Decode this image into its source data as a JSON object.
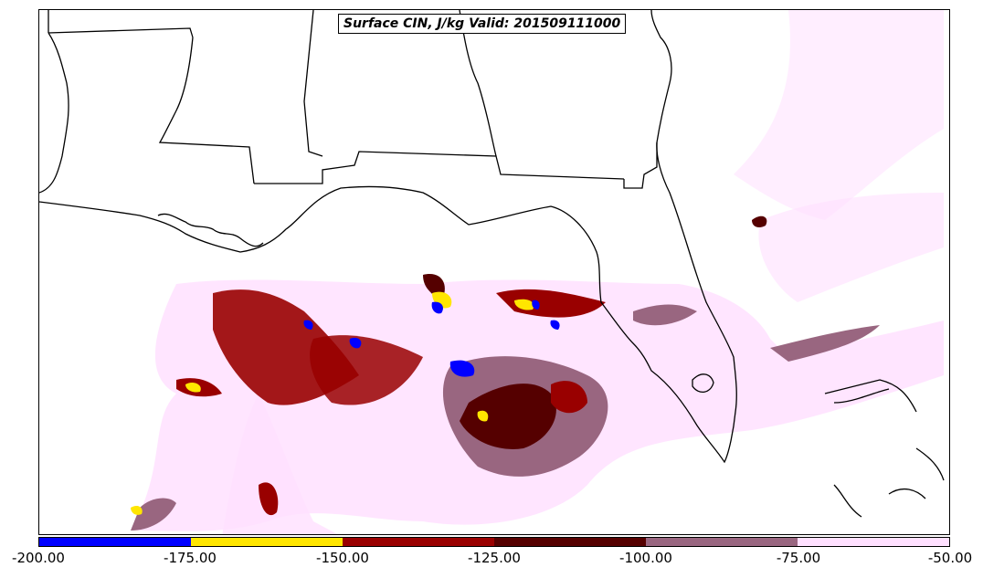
{
  "title": "Surface CIN, J/kg Valid: 201509111000",
  "legend": {
    "colors": [
      "#0000ff",
      "#ffe600",
      "#990000",
      "#550000",
      "#996680",
      "#ffe0ff"
    ],
    "tick_labels": [
      "-200.00",
      "-175.00",
      "-150.00",
      "-125.00",
      "-100.00",
      "-75.00",
      "-50.00"
    ]
  },
  "map": {
    "region": "Gulf of Mexico / Southeastern US",
    "field": "Surface CIN",
    "units": "J/kg",
    "valid": "201509111000"
  }
}
